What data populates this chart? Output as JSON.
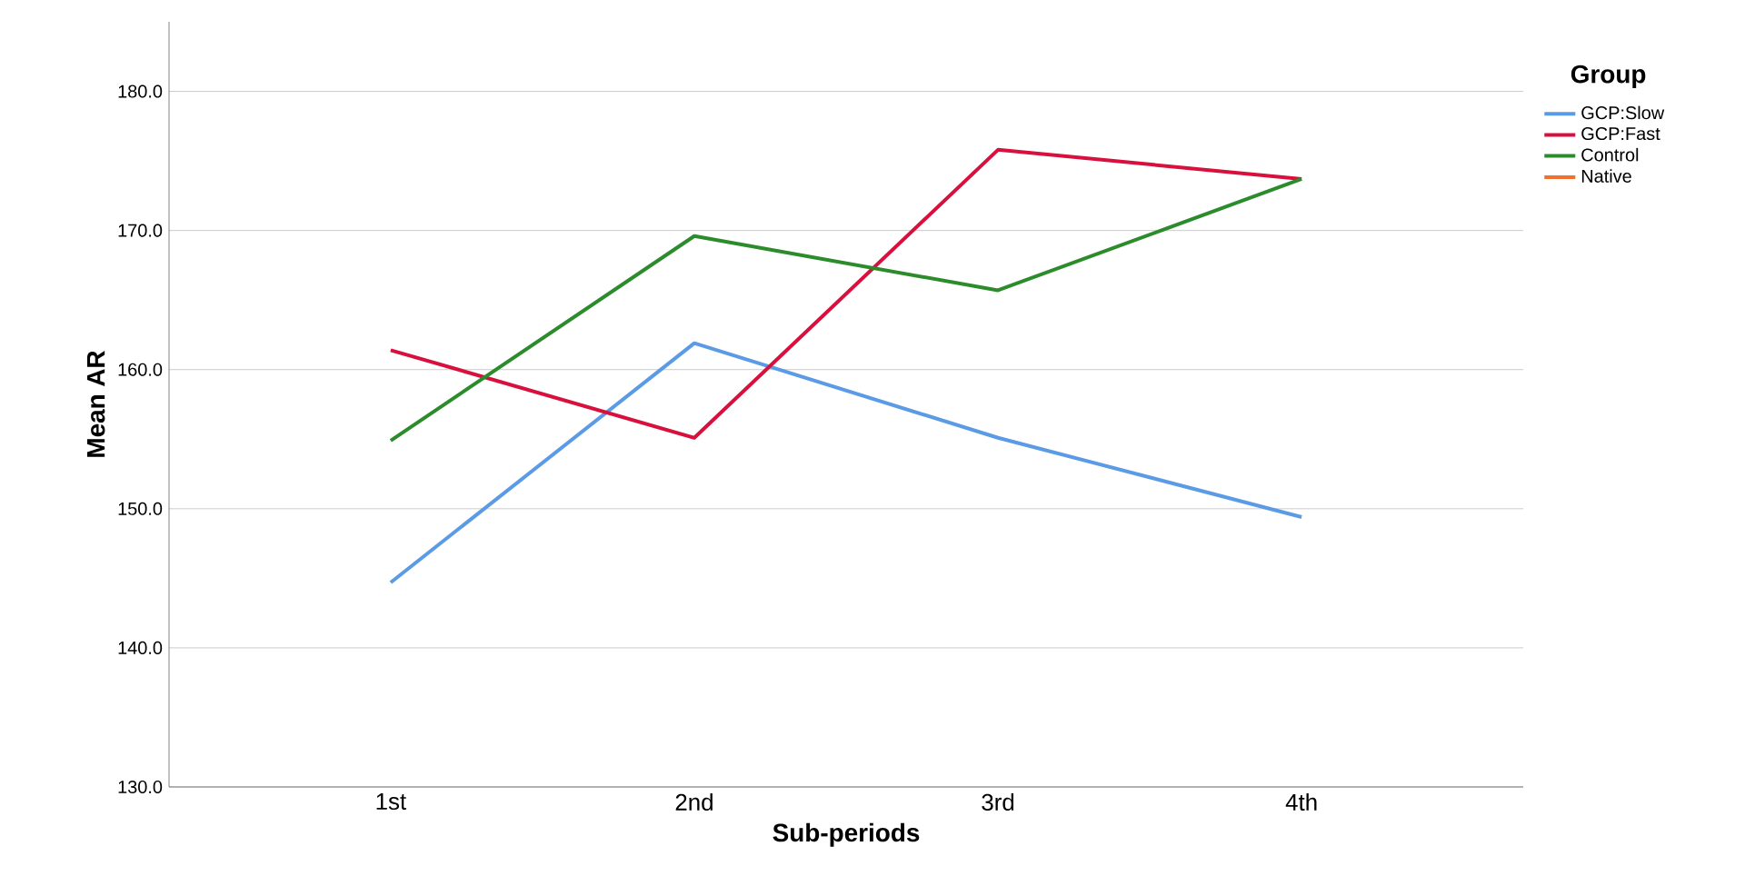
{
  "chart_data": {
    "type": "line",
    "xlabel": "Sub-periods",
    "ylabel": "Mean AR",
    "legend_title": "Group",
    "legend": "right",
    "grid": "y",
    "marker": "none",
    "line_style": "solid",
    "categories": [
      "1st",
      "2nd",
      "3rd",
      "4th"
    ],
    "ylim": [
      130,
      185
    ],
    "yticks": [
      {
        "value": 130,
        "label": "130.0"
      },
      {
        "value": 140,
        "label": "140.0"
      },
      {
        "value": 150,
        "label": "150.0"
      },
      {
        "value": 160,
        "label": "160.0"
      },
      {
        "value": 170,
        "label": "170.0"
      },
      {
        "value": 180,
        "label": "180.0"
      }
    ],
    "series": [
      {
        "name": "GCP:Slow",
        "color": "#5b9be6",
        "values": [
          144.7,
          161.9,
          155.1,
          149.4
        ]
      },
      {
        "name": "GCP:Fast",
        "color": "#d8103e",
        "values": [
          161.4,
          155.1,
          175.8,
          173.7
        ]
      },
      {
        "name": "Control",
        "color": "#2c8c2c",
        "values": [
          154.9,
          169.6,
          165.7,
          173.7
        ]
      },
      {
        "name": "Native",
        "color": "#f07030",
        "values": [
          null,
          null,
          null,
          null
        ]
      }
    ]
  }
}
